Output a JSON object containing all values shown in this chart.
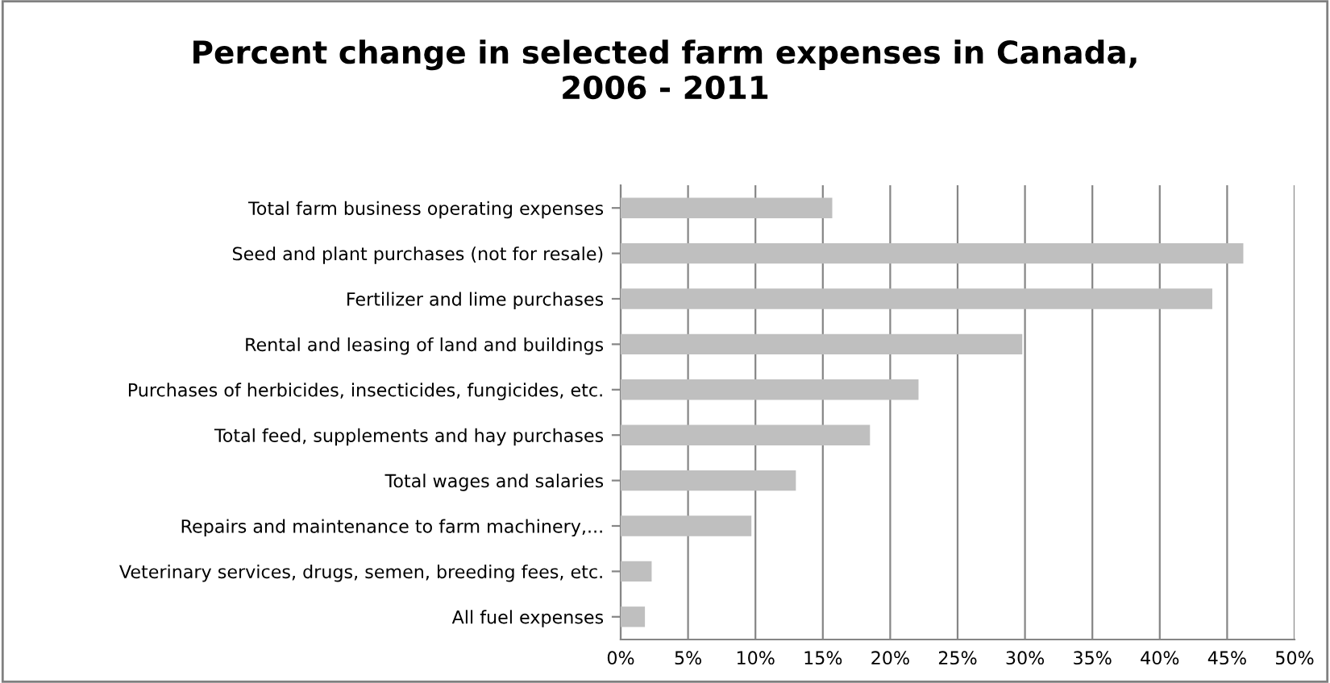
{
  "chart_data": {
    "type": "bar",
    "orientation": "horizontal",
    "title": "Percent change in selected farm expenses in Canada,\n2006 - 2011",
    "categories": [
      "Total farm business operating expenses",
      "Seed and plant purchases (not for resale)",
      "Fertilizer and lime purchases",
      "Rental and leasing of land and buildings",
      "Purchases of herbicides, insecticides, fungicides, etc.",
      "Total feed, supplements and hay purchases",
      "Total wages and salaries",
      "Repairs and maintenance to farm machinery,...",
      "Veterinary services, drugs, semen, breeding fees, etc.",
      "All fuel expenses"
    ],
    "values": [
      15.7,
      46.2,
      43.9,
      29.8,
      22.1,
      18.5,
      13.0,
      9.7,
      2.3,
      1.8
    ],
    "color": "#bfbfbf",
    "xlim": [
      0,
      50
    ],
    "xticks": [
      {
        "value": 0,
        "label": "0%"
      },
      {
        "value": 5,
        "label": "5%"
      },
      {
        "value": 10,
        "label": "10%"
      },
      {
        "value": 15,
        "label": "15%"
      },
      {
        "value": 20,
        "label": "20%"
      },
      {
        "value": 25,
        "label": "25%"
      },
      {
        "value": 30,
        "label": "30%"
      },
      {
        "value": 35,
        "label": "35%"
      },
      {
        "value": 40,
        "label": "40%"
      },
      {
        "value": 45,
        "label": "45%"
      },
      {
        "value": 50,
        "label": "50%"
      }
    ],
    "grid": "x"
  }
}
